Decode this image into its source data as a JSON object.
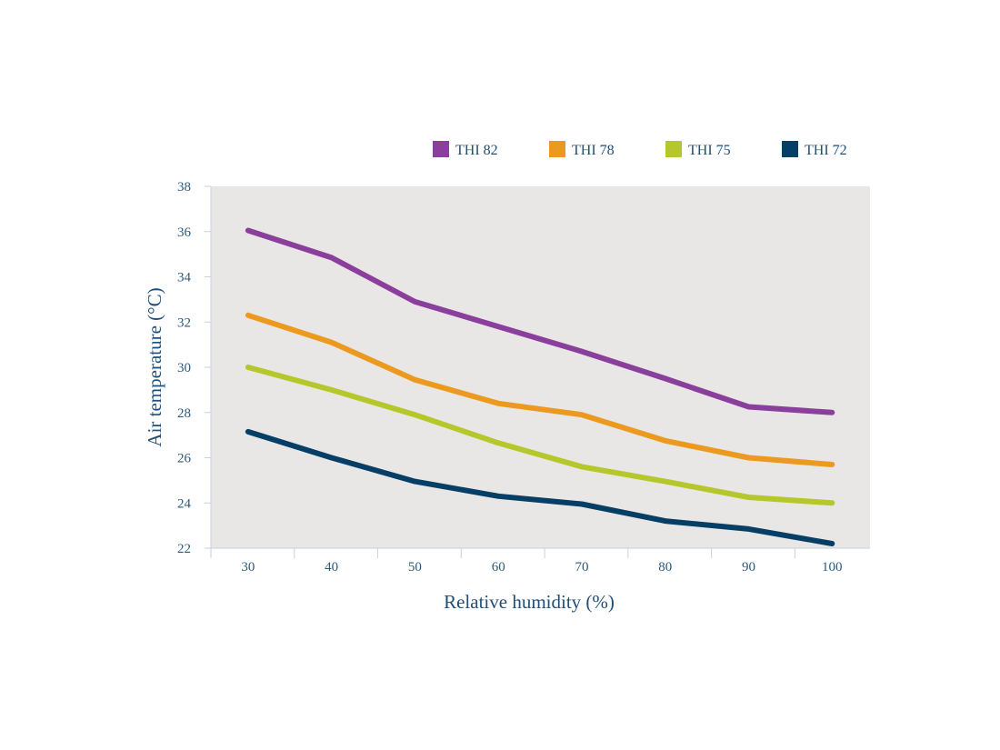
{
  "chart_data": {
    "type": "line",
    "xlabel": "Relative humidity (%)",
    "ylabel": "Air temperature (°C)",
    "x": [
      30,
      40,
      50,
      60,
      70,
      80,
      90,
      100
    ],
    "x_ticks": [
      "30",
      "40",
      "50",
      "60",
      "70",
      "80",
      "90",
      "100"
    ],
    "y_ticks": [
      "22",
      "24",
      "26",
      "28",
      "30",
      "32",
      "34",
      "36",
      "38"
    ],
    "ylim": [
      22,
      38
    ],
    "grid": false,
    "plot_background": "#e9e7e6",
    "legend_position": "top",
    "series": [
      {
        "name": "THI 82",
        "color": "#8b3f9c",
        "values": [
          36.05,
          34.85,
          32.9,
          31.8,
          30.7,
          29.5,
          28.25,
          28.0
        ]
      },
      {
        "name": "THI 78",
        "color": "#ec9a1f",
        "values": [
          32.3,
          31.1,
          29.45,
          28.4,
          27.9,
          26.75,
          26.0,
          25.7
        ]
      },
      {
        "name": "THI 75",
        "color": "#b6c72c",
        "values": [
          30.0,
          29.0,
          27.9,
          26.65,
          25.6,
          24.95,
          24.25,
          24.0
        ]
      },
      {
        "name": "THI 72",
        "color": "#063e66",
        "values": [
          27.15,
          26.0,
          24.95,
          24.3,
          23.95,
          23.2,
          22.85,
          22.2
        ]
      }
    ]
  }
}
